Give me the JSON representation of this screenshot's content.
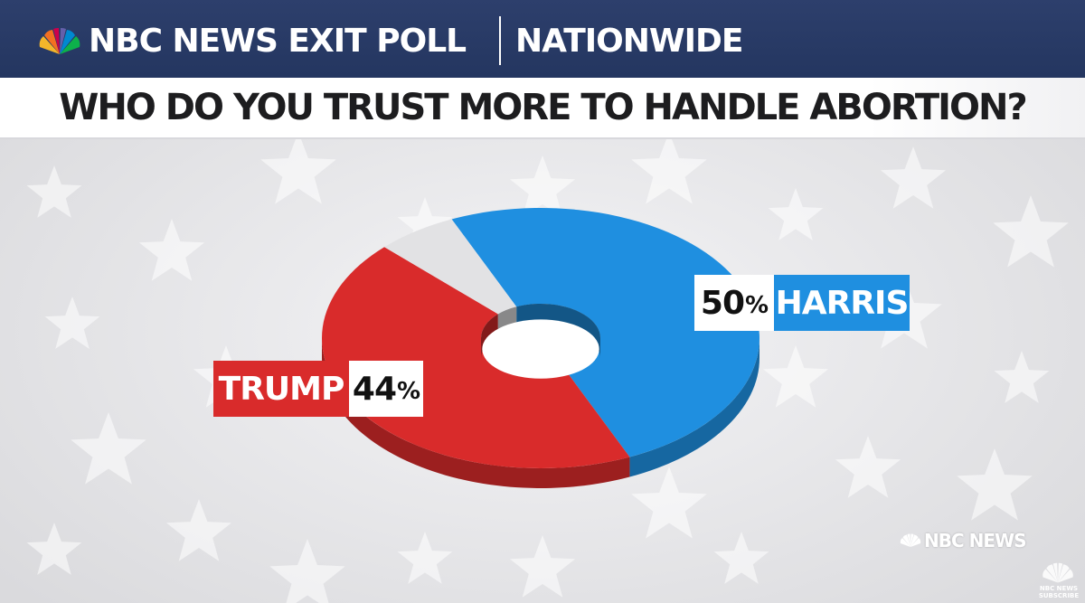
{
  "header": {
    "brand": "NBC NEWS EXIT POLL",
    "scope": "NATIONWIDE"
  },
  "question": "WHO DO YOU TRUST MORE TO HANDLE ABORTION?",
  "colors": {
    "harris": "#1f8fe0",
    "trump": "#d92b2b",
    "other": "#e2e2e4",
    "header": "#2a3b68"
  },
  "chart_data": {
    "type": "pie",
    "style": "donut",
    "title": "WHO DO YOU TRUST MORE TO HANDLE ABORTION?",
    "slices": [
      {
        "label": "HARRIS",
        "value": 50,
        "value_label": "50",
        "unit": "%"
      },
      {
        "label": "TRUMP",
        "value": 44,
        "value_label": "44",
        "unit": "%"
      },
      {
        "label": "",
        "value": 6
      }
    ]
  },
  "watermark": {
    "text": "NBC NEWS",
    "subscribe_brand": "NBC NEWS",
    "subscribe": "SUBSCRIBE"
  },
  "icons": {
    "brand": "nbc-peacock-icon"
  }
}
